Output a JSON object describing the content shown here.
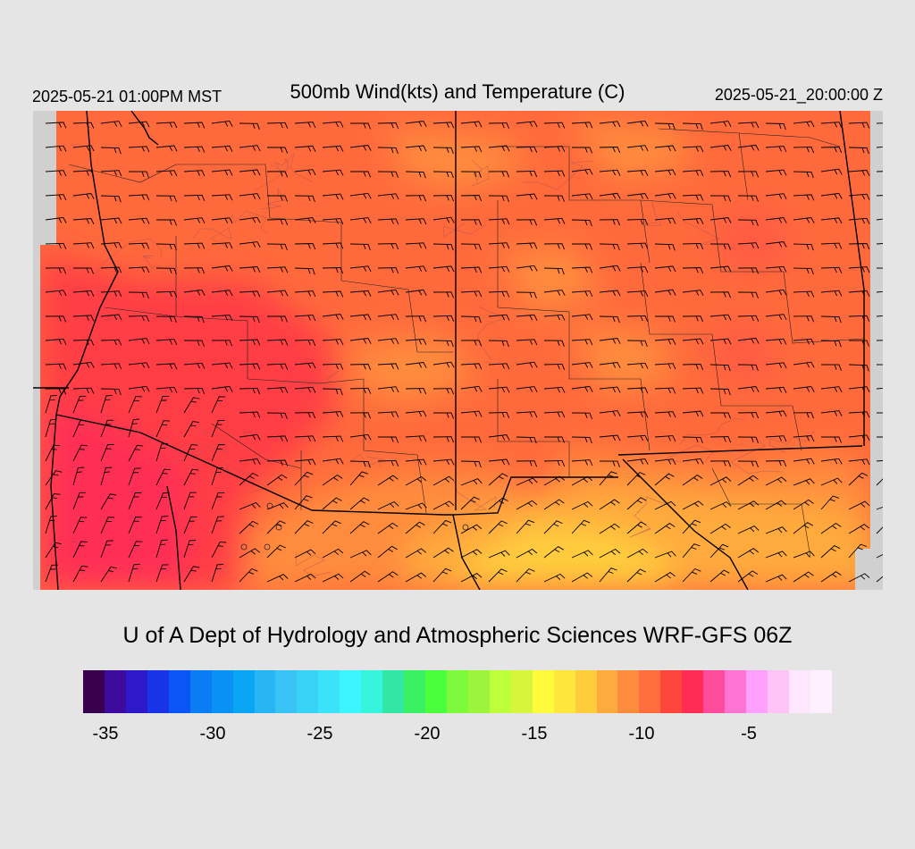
{
  "header": {
    "local_time": "2025-05-21 01:00PM MST",
    "title": "500mb Wind(kts) and Temperature (C)",
    "valid_time": "2025-05-21_20:00:00 Z"
  },
  "credit": "U of A Dept of Hydrology and Atmospheric Sciences WRF-GFS 06Z",
  "map": {
    "field": "temperature_500mb",
    "units": "C",
    "overlay": "wind-barbs",
    "background_color": "#d0d0d0"
  },
  "colorbar": {
    "colors": [
      "#3a0050",
      "#3c0a9c",
      "#2d19c8",
      "#1933e6",
      "#0a55f5",
      "#0a7df5",
      "#0a91f5",
      "#0aa5f5",
      "#28b4f5",
      "#3cc3f5",
      "#37d2f5",
      "#3ce1fa",
      "#3cf5ff",
      "#37f5dc",
      "#32e6a5",
      "#3cf064",
      "#4bff3c",
      "#7dfa3c",
      "#9bf53c",
      "#beff3c",
      "#d7f53c",
      "#fffa3c",
      "#ffe63c",
      "#ffcd3c",
      "#ffaa3c",
      "#ff8c3c",
      "#ff6e3c",
      "#ff463c",
      "#ff2d55",
      "#ff4b9b",
      "#ff73d2",
      "#ffa0ff",
      "#ffc3f5",
      "#ffe6ff",
      "#fff0ff"
    ],
    "ticks": [
      {
        "label": "-35",
        "value": -35
      },
      {
        "label": "-30",
        "value": -30
      },
      {
        "label": "-25",
        "value": -25
      },
      {
        "label": "-20",
        "value": -20
      },
      {
        "label": "-15",
        "value": -15
      },
      {
        "label": "-10",
        "value": -10
      },
      {
        "label": "-5",
        "value": -5
      }
    ]
  }
}
